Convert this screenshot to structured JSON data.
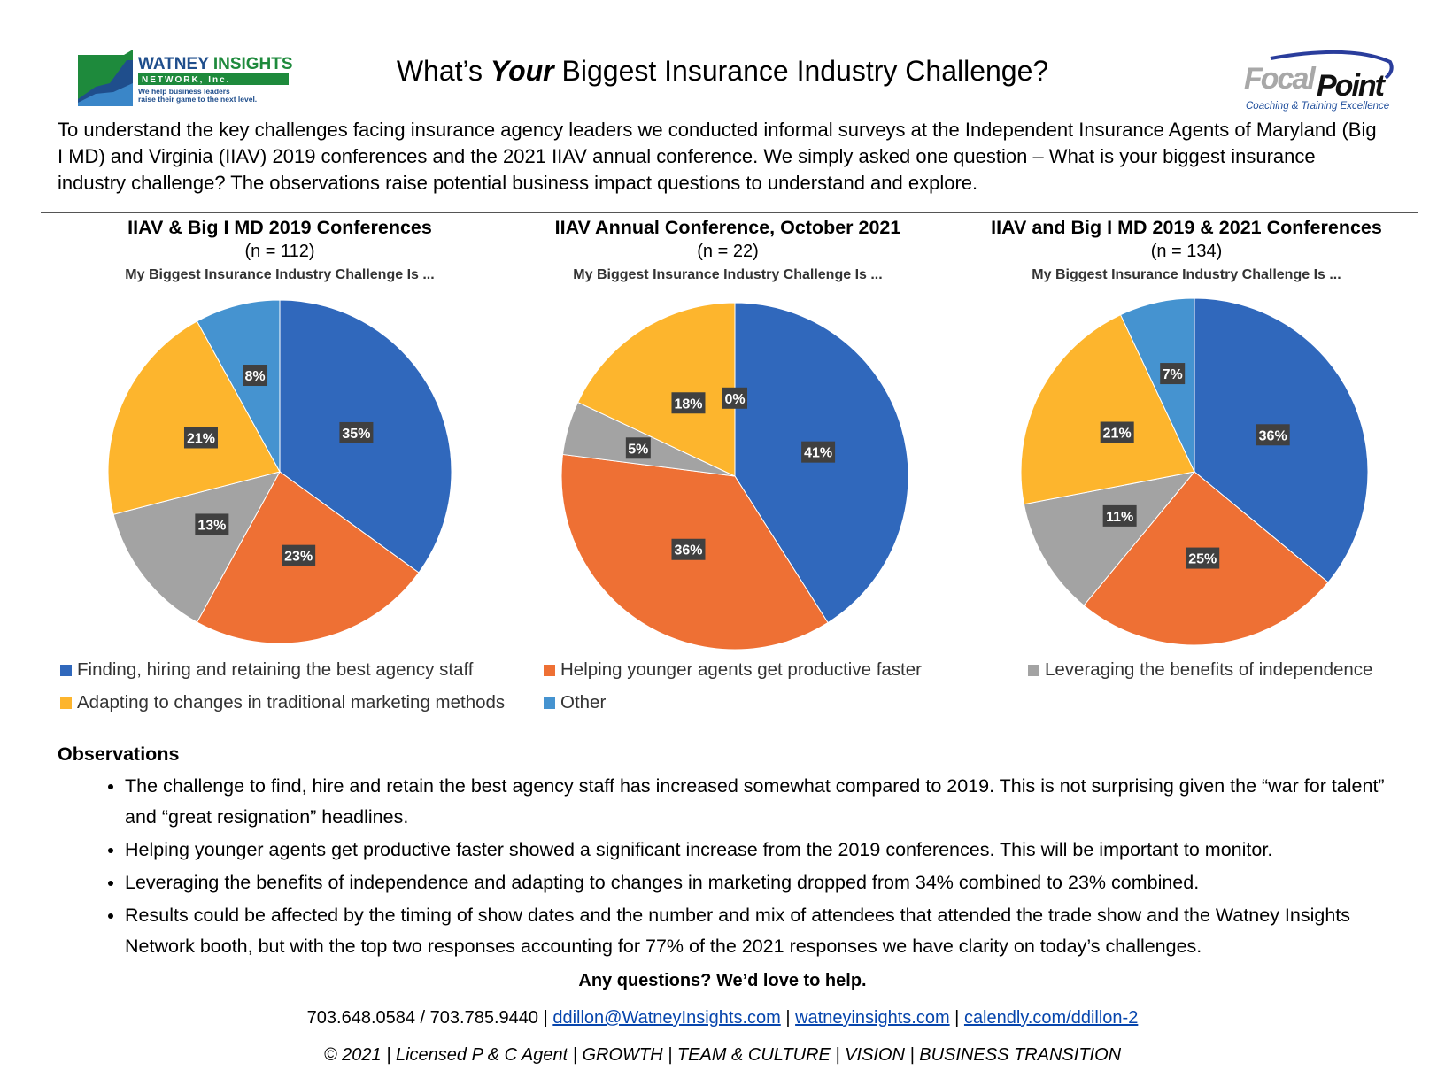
{
  "header": {
    "title_pre": "What’s ",
    "title_em": "Your",
    "title_post": " Biggest Insurance Industry Challenge?",
    "logo_left": {
      "line1a": "WATNEY ",
      "line1b": "INSIGHTS",
      "line2": "N E T W O R K, I n c.",
      "tagline1": "We help business leaders",
      "tagline2": "raise their game to the next level."
    },
    "logo_right": {
      "focal": "Focal",
      "point": "Point",
      "tagline": "Coaching & Training Excellence"
    }
  },
  "intro": "To understand the key challenges facing insurance agency leaders we conducted informal surveys at the Independent Insurance Agents of Maryland (Big I MD) and Virginia (IIAV) 2019 conferences and the 2021 IIAV annual conference. We simply asked one question – What is your biggest insurance industry challenge? The observations raise potential business impact questions to understand and explore.",
  "colors": {
    "Finding": "#3068bc",
    "Helping": "#ee7034",
    "Leveraging": "#a3a3a3",
    "Adapting": "#fdb52d",
    "Other": "#4593d0"
  },
  "chart_data": [
    {
      "type": "pie",
      "title": "IIAV & Big I MD 2019 Conferences",
      "n": "(n = 112)",
      "subtitle": "My Biggest Insurance Industry Challenge Is ...",
      "categories": [
        "Finding",
        "Helping",
        "Leveraging",
        "Adapting",
        "Other"
      ],
      "values": [
        35,
        23,
        13,
        21,
        8
      ],
      "labels": [
        "35%",
        "23%",
        "13%",
        "21%",
        "8%"
      ]
    },
    {
      "type": "pie",
      "title": "IIAV Annual Conference, October 2021",
      "n": "(n = 22)",
      "subtitle": "My Biggest Insurance Industry Challenge Is ...",
      "categories": [
        "Finding",
        "Helping",
        "Leveraging",
        "Adapting",
        "Other"
      ],
      "values": [
        41,
        36,
        5,
        18,
        0
      ],
      "labels": [
        "41%",
        "36%",
        "5%",
        "18%",
        "0%"
      ]
    },
    {
      "type": "pie",
      "title": "IIAV and Big I MD 2019 & 2021 Conferences",
      "n": "(n = 134)",
      "subtitle": "My Biggest Insurance Industry Challenge Is ...",
      "categories": [
        "Finding",
        "Helping",
        "Leveraging",
        "Adapting",
        "Other"
      ],
      "values": [
        36,
        25,
        11,
        21,
        7
      ],
      "labels": [
        "36%",
        "25%",
        "11%",
        "21%",
        "7%"
      ]
    }
  ],
  "legend": [
    {
      "key": "Finding",
      "label": "Finding, hiring and retaining the best agency staff"
    },
    {
      "key": "Helping",
      "label": "Helping younger agents get productive faster"
    },
    {
      "key": "Leveraging",
      "label": "Leveraging the benefits of independence"
    },
    {
      "key": "Adapting",
      "label": "Adapting to changes in traditional marketing methods"
    },
    {
      "key": "Other",
      "label": "Other"
    }
  ],
  "observations": {
    "heading": "Observations",
    "items": [
      "The challenge to find, hire and retain the best agency staff has increased somewhat compared to 2019. This is not surprising given the “war for talent” and “great resignation” headlines.",
      "Helping younger agents get productive faster showed a significant increase from the 2019 conferences. This will be important to monitor.",
      "Leveraging the benefits of independence and adapting to changes in marketing dropped from 34% combined to 23% combined.",
      "Results could be affected by the timing of show dates and the number and mix of attendees that attended the trade show and the Watney Insights Network booth, but with the top two responses accounting for 77% of the 2021 responses we have clarity on today’s challenges."
    ]
  },
  "footer": {
    "cta": "Any questions?  We’d love to help.",
    "phones": "703.648.0584 / 703.785.9440",
    "sep": " | ",
    "email": "ddillon@WatneyInsights.com",
    "site": "watneyinsights.com",
    "calendly": "calendly.com/ddillon-2",
    "tagline": "© 2021 | Licensed P & C Agent | GROWTH | TEAM & CULTURE | VISION | BUSINESS TRANSITION"
  }
}
